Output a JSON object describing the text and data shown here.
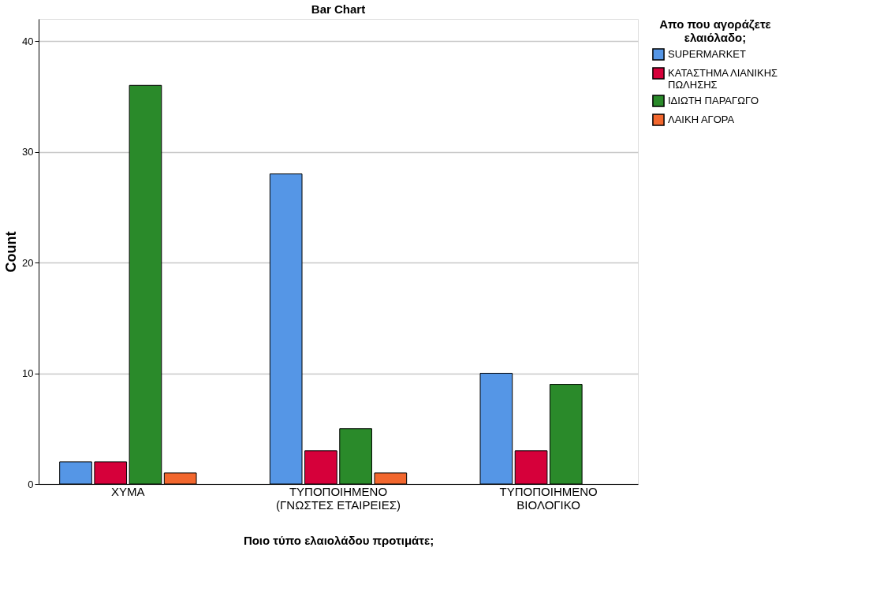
{
  "chart_data": {
    "type": "bar",
    "title": "Bar Chart",
    "xlabel": "Ποιο τύπο ελαιολάδου προτιμάτε;",
    "ylabel": "Count",
    "legend_title": "Απο που αγοράζετε ελαιόλαδο;",
    "categories": [
      "ΧΥΜΑ",
      "ΤΥΠΟΠΟΙΗΜΕΝΟ (ΓΝΩΣΤΕΣ ΕΤΑΙΡΕΙΕΣ)",
      "ΤΥΠΟΠΟΙΗΜΕΝΟ ΒΙΟΛΟΓΙΚΟ"
    ],
    "series": [
      {
        "name": "SUPERMARKET",
        "color": "#5596e6",
        "values": [
          2,
          28,
          10
        ]
      },
      {
        "name": "ΚΑΤΑΣΤΗΜΑ ΛΙΑΝΙΚΗΣ ΠΩΛΗΣΗΣ",
        "color": "#d6003a",
        "values": [
          2,
          3,
          3
        ]
      },
      {
        "name": "ΙΔΙΩΤΗ ΠΑΡΑΓΩΓΟ",
        "color": "#2a8a2a",
        "values": [
          36,
          5,
          9
        ]
      },
      {
        "name": "ΛΑΙΚΗ ΑΓΟΡΑ",
        "color": "#f2672e",
        "values": [
          1,
          1,
          null
        ]
      }
    ],
    "ylim": [
      0,
      42
    ],
    "yticks": [
      0,
      10,
      20,
      30,
      40
    ],
    "grid": "y",
    "legend": "top right"
  }
}
